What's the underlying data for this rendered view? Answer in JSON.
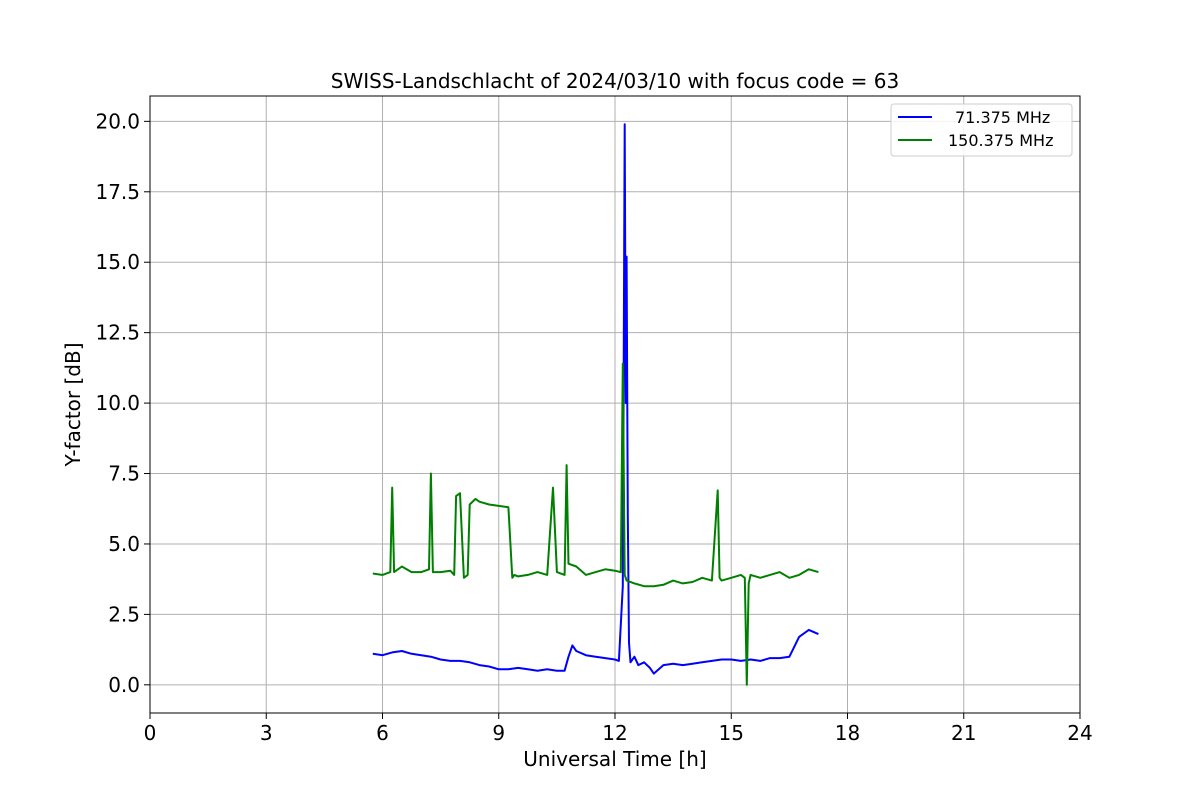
{
  "chart_data": {
    "type": "line",
    "title": "SWISS-Landschlacht of 2024/03/10 with focus code = 63",
    "xlabel": "Universal Time [h]",
    "ylabel": "Y-factor [dB]",
    "xlim": [
      0,
      24
    ],
    "ylim": [
      -1.0,
      20.9
    ],
    "x_ticks": [
      0,
      3,
      6,
      9,
      12,
      15,
      18,
      21,
      24
    ],
    "x_tick_labels": [
      "0",
      "3",
      "6",
      "9",
      "12",
      "15",
      "18",
      "21",
      "24"
    ],
    "y_ticks": [
      0,
      2.5,
      5,
      7.5,
      10,
      12.5,
      15,
      17.5,
      20
    ],
    "y_tick_labels": [
      "0.0",
      "2.5",
      "5.0",
      "7.5",
      "10.0",
      "12.5",
      "15.0",
      "17.5",
      "20.0"
    ],
    "grid": true,
    "legend_position": "top-right",
    "series": [
      {
        "name": "71.375 MHz",
        "color": "#0000ff",
        "x": [
          5.75,
          6.0,
          6.25,
          6.5,
          6.75,
          7.0,
          7.25,
          7.5,
          7.75,
          8.0,
          8.25,
          8.5,
          8.75,
          9.0,
          9.25,
          9.5,
          9.75,
          10.0,
          10.25,
          10.5,
          10.7,
          10.8,
          10.9,
          11.0,
          11.25,
          11.5,
          11.75,
          12.0,
          12.1,
          12.2,
          12.25,
          12.28,
          12.3,
          12.33,
          12.36,
          12.4,
          12.5,
          12.6,
          12.75,
          12.9,
          13.0,
          13.25,
          13.5,
          13.75,
          14.0,
          14.25,
          14.5,
          14.75,
          15.0,
          15.25,
          15.5,
          15.75,
          16.0,
          16.25,
          16.5,
          16.75,
          17.0,
          17.25
        ],
        "y": [
          1.1,
          1.05,
          1.15,
          1.2,
          1.1,
          1.05,
          1.0,
          0.9,
          0.85,
          0.85,
          0.8,
          0.7,
          0.65,
          0.55,
          0.55,
          0.6,
          0.55,
          0.5,
          0.55,
          0.5,
          0.5,
          1.0,
          1.4,
          1.2,
          1.05,
          1.0,
          0.95,
          0.9,
          0.85,
          3.5,
          19.9,
          10.0,
          15.2,
          6.0,
          1.5,
          0.8,
          1.0,
          0.7,
          0.8,
          0.6,
          0.4,
          0.7,
          0.75,
          0.7,
          0.75,
          0.8,
          0.85,
          0.9,
          0.9,
          0.85,
          0.9,
          0.85,
          0.95,
          0.95,
          1.0,
          1.7,
          1.95,
          1.8
        ]
      },
      {
        "name": "150.375 MHz",
        "color": "#008000",
        "x": [
          5.75,
          6.0,
          6.2,
          6.25,
          6.3,
          6.5,
          6.75,
          7.0,
          7.2,
          7.25,
          7.3,
          7.5,
          7.75,
          7.85,
          7.9,
          8.0,
          8.1,
          8.2,
          8.25,
          8.4,
          8.5,
          8.75,
          9.0,
          9.25,
          9.35,
          9.4,
          9.5,
          9.75,
          10.0,
          10.25,
          10.4,
          10.5,
          10.7,
          10.75,
          10.8,
          11.0,
          11.25,
          11.5,
          11.75,
          12.0,
          12.15,
          12.2,
          12.25,
          12.3,
          12.5,
          12.75,
          13.0,
          13.25,
          13.5,
          13.75,
          14.0,
          14.25,
          14.5,
          14.65,
          14.7,
          14.75,
          15.0,
          15.25,
          15.35,
          15.4,
          15.45,
          15.5,
          15.75,
          16.0,
          16.25,
          16.5,
          16.75,
          17.0,
          17.25
        ],
        "y": [
          3.95,
          3.9,
          4.0,
          7.0,
          4.0,
          4.2,
          4.0,
          4.0,
          4.1,
          7.5,
          4.0,
          4.0,
          4.05,
          3.9,
          6.7,
          6.8,
          3.8,
          3.9,
          6.4,
          6.6,
          6.5,
          6.4,
          6.35,
          6.3,
          3.8,
          3.9,
          3.85,
          3.9,
          4.0,
          3.9,
          7.0,
          4.0,
          3.9,
          7.8,
          4.3,
          4.2,
          3.9,
          4.0,
          4.1,
          4.05,
          4.0,
          11.4,
          3.9,
          3.7,
          3.6,
          3.5,
          3.5,
          3.55,
          3.7,
          3.6,
          3.65,
          3.8,
          3.7,
          6.9,
          3.8,
          3.7,
          3.8,
          3.9,
          3.8,
          0.0,
          3.6,
          3.9,
          3.8,
          3.9,
          4.0,
          3.8,
          3.9,
          4.1,
          4.0
        ]
      }
    ]
  }
}
